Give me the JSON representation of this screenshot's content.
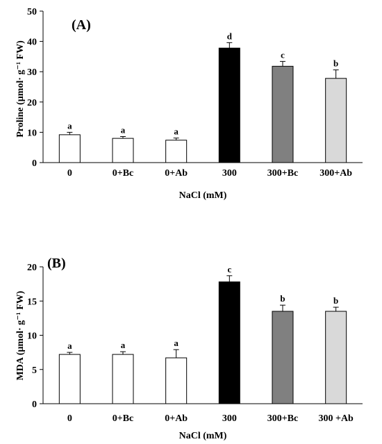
{
  "chart_data": [
    {
      "type": "bar",
      "panel_label": "(A)",
      "categories": [
        "0",
        "0+Bc",
        "0+Ab",
        "300",
        "300+Bc",
        "300+Ab"
      ],
      "values": [
        9.2,
        8.0,
        7.4,
        37.8,
        31.8,
        27.8
      ],
      "errors": [
        0.8,
        0.6,
        0.7,
        1.8,
        1.6,
        2.8
      ],
      "significance": [
        "a",
        "a",
        "a",
        "d",
        "c",
        "b"
      ],
      "bar_colors": [
        "#ffffff",
        "#ffffff",
        "#ffffff",
        "#000000",
        "#808080",
        "#d9d9d9"
      ],
      "ylabel": "Proline (µmol· g⁻¹ FW)",
      "xlabel": "NaCl (mM)",
      "ylim": [
        0,
        50
      ],
      "yticks": [
        0,
        10,
        20,
        30,
        40,
        50
      ],
      "grid": false
    },
    {
      "type": "bar",
      "panel_label": "(B)",
      "categories": [
        "0",
        "0+Bc",
        "0+Ab",
        "300",
        "300+Bc",
        "300 +Ab"
      ],
      "values": [
        7.2,
        7.2,
        6.7,
        17.8,
        13.5,
        13.5
      ],
      "errors": [
        0.3,
        0.4,
        1.2,
        0.9,
        0.9,
        0.6
      ],
      "significance": [
        "a",
        "a",
        "a",
        "c",
        "b",
        "b"
      ],
      "bar_colors": [
        "#ffffff",
        "#ffffff",
        "#ffffff",
        "#000000",
        "#808080",
        "#d9d9d9"
      ],
      "ylabel": "MDA (µmol· g⁻¹ FW)",
      "xlabel": "NaCl (mM)",
      "ylim": [
        0,
        20
      ],
      "yticks": [
        0,
        5,
        10,
        15,
        20
      ],
      "grid": false
    }
  ]
}
